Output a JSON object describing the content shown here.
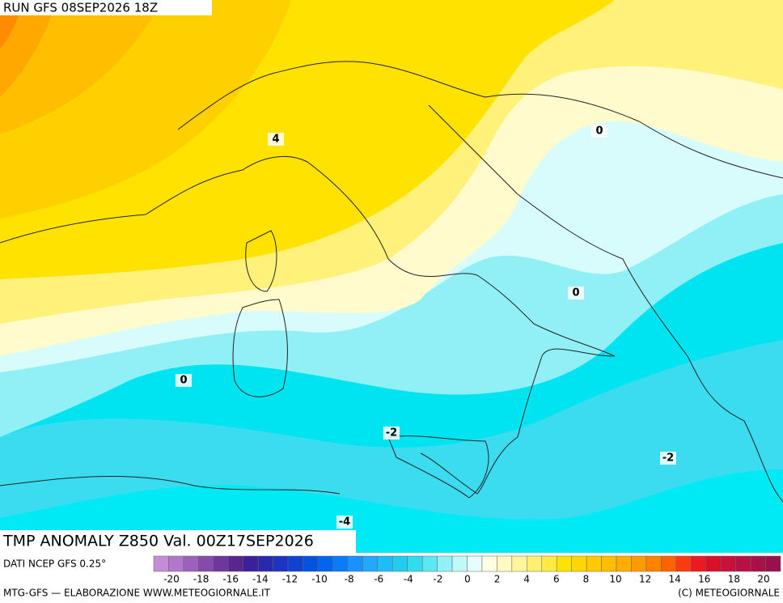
{
  "header": {
    "run": "RUN GFS 08SEP2026 18Z"
  },
  "map": {
    "title": "TMP ANOMALY Z850 Val. 00Z17SEP2026",
    "contour_labels": [
      "4",
      "0",
      "0",
      "0",
      "-2",
      "-2",
      "-4"
    ]
  },
  "colorbar": {
    "labels": [
      "-20",
      "-18",
      "-16",
      "-14",
      "-12",
      "-10",
      "-8",
      "-6",
      "-4",
      "-2",
      "0",
      "2",
      "4",
      "6",
      "8",
      "10",
      "12",
      "14",
      "16",
      "18",
      "20"
    ],
    "colors": [
      "#c58cd8",
      "#b277cc",
      "#9d61bd",
      "#864aad",
      "#6f369c",
      "#59268f",
      "#3b1f9c",
      "#2a29ad",
      "#1b35c0",
      "#1042d1",
      "#0452e0",
      "#0066ee",
      "#0a7cf8",
      "#1892ff",
      "#22a8ff",
      "#20bcf5",
      "#20cdec",
      "#30dcee",
      "#5ae8f2",
      "#90f2f6",
      "#bff9fa",
      "#e4fdfd",
      "#fffde2",
      "#fffac2",
      "#fff59c",
      "#fff072",
      "#ffea44",
      "#ffe200",
      "#ffd600",
      "#ffca00",
      "#ffbd00",
      "#ffad00",
      "#ff9a00",
      "#ff8200",
      "#ff6200",
      "#fa3a10",
      "#ea1a1e",
      "#d8102e",
      "#c8103c",
      "#b81045",
      "#a8104a",
      "#98104e"
    ]
  },
  "footer": {
    "source": "DATI NCEP GFS 0.25°",
    "left": "MTG-GFS — ELABORAZIONE WWW.METEOGIORNALE.IT",
    "right": "(C) METEOGIORNALE"
  }
}
